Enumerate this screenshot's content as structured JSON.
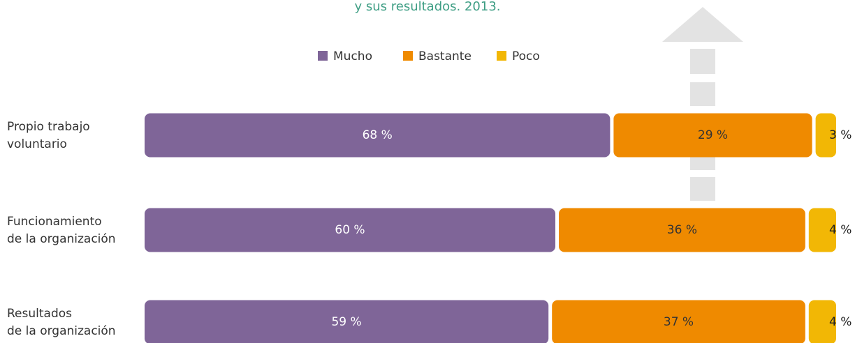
{
  "chart_data": {
    "type": "stacked-barh",
    "title": "y sus resultados. 2013.",
    "categories": [
      [
        "Propio trabajo",
        "voluntario"
      ],
      [
        "Funcionamiento",
        "de la organización"
      ],
      [
        "Resultados",
        "de la organización"
      ]
    ],
    "series": [
      {
        "name": "Mucho",
        "color": "#7f6598",
        "values": [
          68,
          60,
          59
        ],
        "value_labels": [
          "68 %",
          "60 %",
          "59 %"
        ]
      },
      {
        "name": "Bastante",
        "color": "#ef8a00",
        "values": [
          29,
          36,
          37
        ],
        "value_labels": [
          "29 %",
          "36 %",
          "37 %"
        ]
      },
      {
        "name": "Poco",
        "color": "#f2b705",
        "values": [
          3,
          4,
          4
        ],
        "value_labels": [
          "3 %",
          "4 %",
          "4 %"
        ]
      }
    ],
    "legend": "top"
  }
}
